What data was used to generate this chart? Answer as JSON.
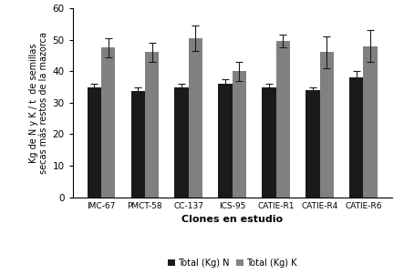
{
  "categories": [
    "IMC-67",
    "PMCT-58",
    "CC-137",
    "ICS-95",
    "CATIE-R1",
    "CATIE-R4",
    "CATIE-R6"
  ],
  "N_values": [
    35.0,
    33.8,
    35.0,
    36.0,
    35.0,
    34.0,
    38.0
  ],
  "K_values": [
    47.5,
    46.0,
    50.5,
    40.0,
    49.5,
    46.0,
    48.0
  ],
  "N_errors": [
    1.0,
    1.0,
    1.0,
    1.5,
    1.0,
    1.0,
    2.0
  ],
  "K_errors": [
    3.0,
    3.0,
    4.0,
    3.0,
    2.0,
    5.0,
    5.0
  ],
  "N_color": "#1a1a1a",
  "K_color": "#808080",
  "ylabel_line1": "Kg de N y K / t  de semillas",
  "ylabel_line2": "secas más restos de la mazorca",
  "xlabel": "Clones en estudio",
  "ylim": [
    0,
    60
  ],
  "yticks": [
    0,
    10,
    20,
    30,
    40,
    50,
    60
  ],
  "legend_N": "Total (Kg) N",
  "legend_K": "Total (Kg) K",
  "bar_width": 0.32,
  "capsize": 3,
  "ecolor": "#1a1a1a",
  "elinewidth": 0.8,
  "capthick": 0.8,
  "xlabel_fontsize": 8,
  "ylabel_fontsize": 7,
  "xtick_fontsize": 6.5,
  "ytick_fontsize": 7.5,
  "legend_fontsize": 7
}
